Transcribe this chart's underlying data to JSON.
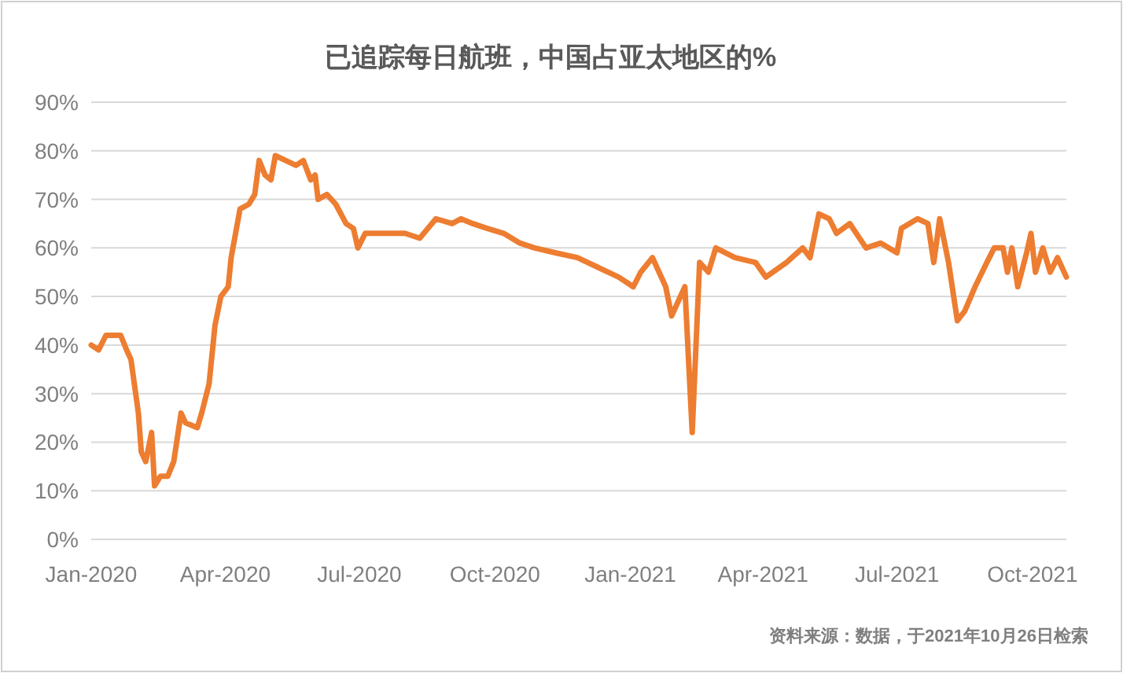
{
  "chart_data": {
    "type": "line",
    "title": "已追踪每日航班，中国占亚太地区的%",
    "x": [
      "2020-01-01",
      "2020-01-06",
      "2020-01-11",
      "2020-01-21",
      "2020-01-25",
      "2020-01-28",
      "2020-02-02",
      "2020-02-04",
      "2020-02-07",
      "2020-02-11",
      "2020-02-13",
      "2020-02-17",
      "2020-02-22",
      "2020-02-26",
      "2020-03-02",
      "2020-03-05",
      "2020-03-13",
      "2020-03-16",
      "2020-03-21",
      "2020-03-25",
      "2020-03-29",
      "2020-04-03",
      "2020-04-05",
      "2020-04-08",
      "2020-04-11",
      "2020-04-17",
      "2020-04-21",
      "2020-04-24",
      "2020-04-28",
      "2020-05-02",
      "2020-05-05",
      "2020-05-12",
      "2020-05-19",
      "2020-05-24",
      "2020-05-29",
      "2020-06-01",
      "2020-06-03",
      "2020-06-09",
      "2020-06-15",
      "2020-06-22",
      "2020-06-27",
      "2020-06-30",
      "2020-07-05",
      "2020-07-13",
      "2020-07-21",
      "2020-08-01",
      "2020-08-11",
      "2020-08-22",
      "2020-09-02",
      "2020-09-08",
      "2020-09-16",
      "2020-09-26",
      "2020-10-07",
      "2020-10-18",
      "2020-10-28",
      "2020-11-11",
      "2020-11-26",
      "2020-12-10",
      "2020-12-24",
      "2021-01-03",
      "2021-01-08",
      "2021-01-16",
      "2021-01-25",
      "2021-01-29",
      "2021-02-07",
      "2021-02-12",
      "2021-02-17",
      "2021-02-23",
      "2021-02-28",
      "2021-03-13",
      "2021-03-27",
      "2021-04-03",
      "2021-04-17",
      "2021-04-28",
      "2021-05-03",
      "2021-05-09",
      "2021-05-16",
      "2021-05-21",
      "2021-05-30",
      "2021-06-10",
      "2021-06-20",
      "2021-07-01",
      "2021-07-04",
      "2021-07-15",
      "2021-07-22",
      "2021-07-26",
      "2021-07-30",
      "2021-08-05",
      "2021-08-11",
      "2021-08-16",
      "2021-08-23",
      "2021-08-31",
      "2021-09-05",
      "2021-09-11",
      "2021-09-14",
      "2021-09-17",
      "2021-09-21",
      "2021-09-27",
      "2021-09-30",
      "2021-10-03",
      "2021-10-08",
      "2021-10-13",
      "2021-10-18",
      "2021-10-24"
    ],
    "series": [
      {
        "color": "#ed7d31",
        "values": [
          40,
          39,
          42,
          42,
          39,
          37,
          26,
          18,
          16,
          22,
          11,
          13,
          13,
          16,
          26,
          24,
          23,
          26,
          32,
          44,
          50,
          52,
          58,
          63,
          68,
          69,
          71,
          78,
          75,
          74,
          79,
          78,
          77,
          78,
          74,
          75,
          70,
          71,
          69,
          65,
          64,
          60,
          63,
          63,
          63,
          63,
          62,
          66,
          65,
          66,
          65,
          64,
          63,
          61,
          60,
          59,
          58,
          56,
          54,
          52,
          55,
          58,
          52,
          46,
          52,
          22,
          57,
          55,
          60,
          58,
          57,
          54,
          57,
          60,
          58,
          67,
          66,
          63,
          65,
          60,
          61,
          59,
          64,
          66,
          65,
          57,
          66,
          57,
          45,
          47,
          52,
          57,
          60,
          60,
          55,
          60,
          52,
          59,
          63,
          55,
          60,
          55,
          58,
          54
        ]
      }
    ],
    "xlim": [
      "2020-01-01",
      "2021-10-24"
    ],
    "xticks": [
      {
        "value": "2020-01-01",
        "label": "Jan-2020"
      },
      {
        "value": "2020-04-01",
        "label": "Apr-2020"
      },
      {
        "value": "2020-07-01",
        "label": "Jul-2020"
      },
      {
        "value": "2020-10-01",
        "label": "Oct-2020"
      },
      {
        "value": "2021-01-01",
        "label": "Jan-2021"
      },
      {
        "value": "2021-04-01",
        "label": "Apr-2021"
      },
      {
        "value": "2021-07-01",
        "label": "Jul-2021"
      },
      {
        "value": "2021-10-01",
        "label": "Oct-2021"
      }
    ],
    "ylim": [
      0,
      90
    ],
    "yticks": [
      {
        "value": 0,
        "label": "0%"
      },
      {
        "value": 10,
        "label": "10%"
      },
      {
        "value": 20,
        "label": "20%"
      },
      {
        "value": 30,
        "label": "30%"
      },
      {
        "value": 40,
        "label": "40%"
      },
      {
        "value": 50,
        "label": "50%"
      },
      {
        "value": 60,
        "label": "60%"
      },
      {
        "value": 70,
        "label": "70%"
      },
      {
        "value": 80,
        "label": "80%"
      },
      {
        "value": 90,
        "label": "90%"
      }
    ],
    "grid": "y",
    "annotations": [
      "资料来源：数据，于2021年10月26日检索"
    ]
  }
}
